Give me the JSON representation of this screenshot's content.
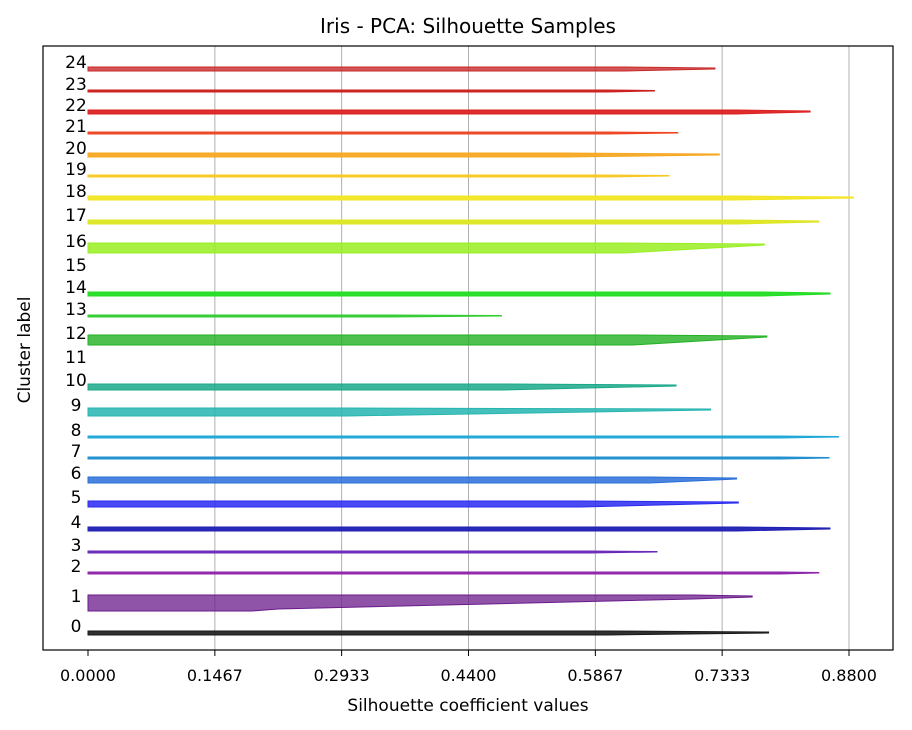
{
  "chart_data": {
    "type": "silhouette",
    "title": "Iris - PCA: Silhouette Samples",
    "xlabel": "Silhouette coefficient values",
    "ylabel": "Cluster label",
    "xlim": [
      -0.052,
      0.935
    ],
    "grid": "vertical",
    "x_ticks": [
      0.0,
      0.1467,
      0.2933,
      0.44,
      0.5867,
      0.7333,
      0.88
    ],
    "x_tick_labels": [
      "0.0000",
      "0.1467",
      "0.2933",
      "0.4400",
      "0.5867",
      "0.7333",
      "0.8800"
    ],
    "clusters": [
      {
        "label": "0",
        "color": "#1a1a1a",
        "opacity": 0.9,
        "max": 0.787,
        "knee": 0.6,
        "knee_lo": 0.6,
        "width": 1.0,
        "min": 0.0,
        "thick": 2
      },
      {
        "label": "1",
        "color": "#6a1b8a",
        "opacity": 0.75,
        "max": 0.768,
        "knee": 0.7,
        "knee_lo": 0.22,
        "width": 1.0,
        "min": 0.19,
        "thick": 8
      },
      {
        "label": "2",
        "color": "#8e24aa",
        "opacity": 0.95,
        "max": 0.845,
        "knee": 0.8,
        "knee_lo": 0.8,
        "width": 1.0,
        "min": 0.0,
        "thick": 1
      },
      {
        "label": "3",
        "color": "#6a2ab8",
        "opacity": 0.95,
        "max": 0.658,
        "knee": 0.58,
        "knee_lo": 0.58,
        "width": 1.0,
        "min": 0.0,
        "thick": 1
      },
      {
        "label": "4",
        "color": "#1f1fb4",
        "opacity": 0.95,
        "max": 0.858,
        "knee": 0.75,
        "knee_lo": 0.75,
        "width": 1.0,
        "min": 0.0,
        "thick": 2
      },
      {
        "label": "5",
        "color": "#2a2af0",
        "opacity": 0.85,
        "max": 0.752,
        "knee": 0.57,
        "knee_lo": 0.57,
        "width": 1.0,
        "min": 0.0,
        "thick": 3
      },
      {
        "label": "6",
        "color": "#2a6fd8",
        "opacity": 0.85,
        "max": 0.75,
        "knee": 0.65,
        "knee_lo": 0.65,
        "width": 1.0,
        "min": 0.0,
        "thick": 3
      },
      {
        "label": "7",
        "color": "#1f8fcf",
        "opacity": 0.95,
        "max": 0.857,
        "knee": 0.8,
        "knee_lo": 0.8,
        "width": 1.0,
        "min": 0.0,
        "thick": 1
      },
      {
        "label": "8",
        "color": "#1fa8d8",
        "opacity": 0.95,
        "max": 0.868,
        "knee": 0.8,
        "knee_lo": 0.8,
        "width": 1.0,
        "min": 0.0,
        "thick": 1
      },
      {
        "label": "9",
        "color": "#26b5b0",
        "opacity": 0.85,
        "max": 0.72,
        "knee": 0.3,
        "knee_lo": 0.3,
        "width": 1.0,
        "min": 0.0,
        "thick": 4
      },
      {
        "label": "10",
        "color": "#1aa88a",
        "opacity": 0.85,
        "max": 0.68,
        "knee": 0.48,
        "knee_lo": 0.48,
        "width": 1.0,
        "min": 0.0,
        "thick": 3
      },
      {
        "label": "11",
        "color": "#2bbf50",
        "opacity": 0.0,
        "max": 0.0,
        "knee": 0.0,
        "knee_lo": 0.0,
        "width": 1.0,
        "min": 0.0,
        "thick": 0
      },
      {
        "label": "12",
        "color": "#22b022",
        "opacity": 0.8,
        "max": 0.785,
        "knee": 0.63,
        "knee_lo": 0.63,
        "width": 1.0,
        "min": 0.0,
        "thick": 5
      },
      {
        "label": "13",
        "color": "#33cc33",
        "opacity": 0.95,
        "max": 0.478,
        "knee": 0.35,
        "knee_lo": 0.35,
        "width": 1.0,
        "min": 0.0,
        "thick": 1
      },
      {
        "label": "14",
        "color": "#22dd22",
        "opacity": 0.95,
        "max": 0.858,
        "knee": 0.78,
        "knee_lo": 0.78,
        "width": 1.0,
        "min": 0.0,
        "thick": 2
      },
      {
        "label": "15",
        "color": "#88ee22",
        "opacity": 0.0,
        "max": 0.0,
        "knee": 0.0,
        "knee_lo": 0.0,
        "width": 1.0,
        "min": 0.0,
        "thick": 0
      },
      {
        "label": "16",
        "color": "#99ee22",
        "opacity": 0.85,
        "max": 0.782,
        "knee": 0.62,
        "knee_lo": 0.62,
        "width": 1.0,
        "min": 0.0,
        "thick": 5
      },
      {
        "label": "17",
        "color": "#dde622",
        "opacity": 0.95,
        "max": 0.845,
        "knee": 0.75,
        "knee_lo": 0.75,
        "width": 1.0,
        "min": 0.0,
        "thick": 2
      },
      {
        "label": "18",
        "color": "#f2e622",
        "opacity": 0.95,
        "max": 0.885,
        "knee": 0.75,
        "knee_lo": 0.75,
        "width": 1.0,
        "min": 0.0,
        "thick": 2
      },
      {
        "label": "19",
        "color": "#f5c822",
        "opacity": 0.95,
        "max": 0.672,
        "knee": 0.6,
        "knee_lo": 0.6,
        "width": 1.0,
        "min": 0.0,
        "thick": 1
      },
      {
        "label": "20",
        "color": "#f5a822",
        "opacity": 0.95,
        "max": 0.73,
        "knee": 0.55,
        "knee_lo": 0.55,
        "width": 1.0,
        "min": 0.0,
        "thick": 2
      },
      {
        "label": "21",
        "color": "#ee4422",
        "opacity": 0.95,
        "max": 0.682,
        "knee": 0.6,
        "knee_lo": 0.6,
        "width": 1.0,
        "min": 0.0,
        "thick": 1
      },
      {
        "label": "22",
        "color": "#dd2222",
        "opacity": 0.95,
        "max": 0.835,
        "knee": 0.75,
        "knee_lo": 0.75,
        "width": 1.0,
        "min": 0.0,
        "thick": 2
      },
      {
        "label": "23",
        "color": "#cc1f1f",
        "opacity": 0.95,
        "max": 0.655,
        "knee": 0.6,
        "knee_lo": 0.6,
        "width": 1.0,
        "min": 0.0,
        "thick": 1
      },
      {
        "label": "24",
        "color": "#c82a2a",
        "opacity": 0.8,
        "max": 0.725,
        "knee": 0.62,
        "knee_lo": 0.62,
        "width": 1.0,
        "min": 0.0,
        "thick": 2
      }
    ]
  }
}
